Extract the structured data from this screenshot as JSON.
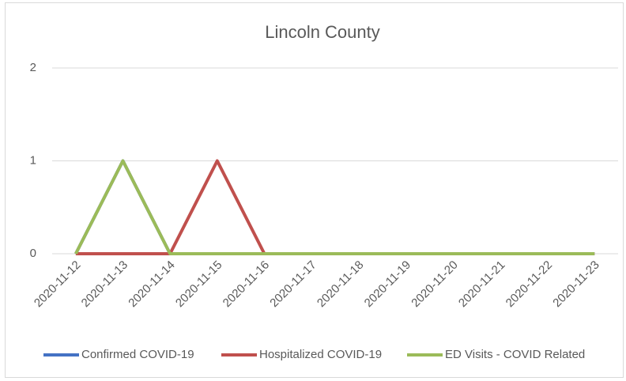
{
  "chart_data": {
    "type": "line",
    "title": "Lincoln County",
    "categories": [
      "2020-11-12",
      "2020-11-13",
      "2020-11-14",
      "2020-11-15",
      "2020-11-16",
      "2020-11-17",
      "2020-11-18",
      "2020-11-19",
      "2020-11-20",
      "2020-11-21",
      "2020-11-22",
      "2020-11-23"
    ],
    "series": [
      {
        "name": "Confirmed COVID-19",
        "color": "#4472c4",
        "values": [
          0,
          1,
          0,
          0,
          0,
          0,
          0,
          0,
          0,
          0,
          0,
          0
        ]
      },
      {
        "name": "Hospitalized COVID-19",
        "color": "#c0504d",
        "values": [
          0,
          0,
          0,
          1,
          0,
          0,
          0,
          0,
          0,
          0,
          0,
          0
        ]
      },
      {
        "name": "ED Visits - COVID Related",
        "color": "#9bbb59",
        "values": [
          0,
          1,
          0,
          0,
          0,
          0,
          0,
          0,
          0,
          0,
          0,
          0
        ]
      }
    ],
    "ylim": [
      0,
      2
    ],
    "yticks": [
      0,
      1,
      2
    ],
    "grid": true,
    "legend": "bottom"
  }
}
